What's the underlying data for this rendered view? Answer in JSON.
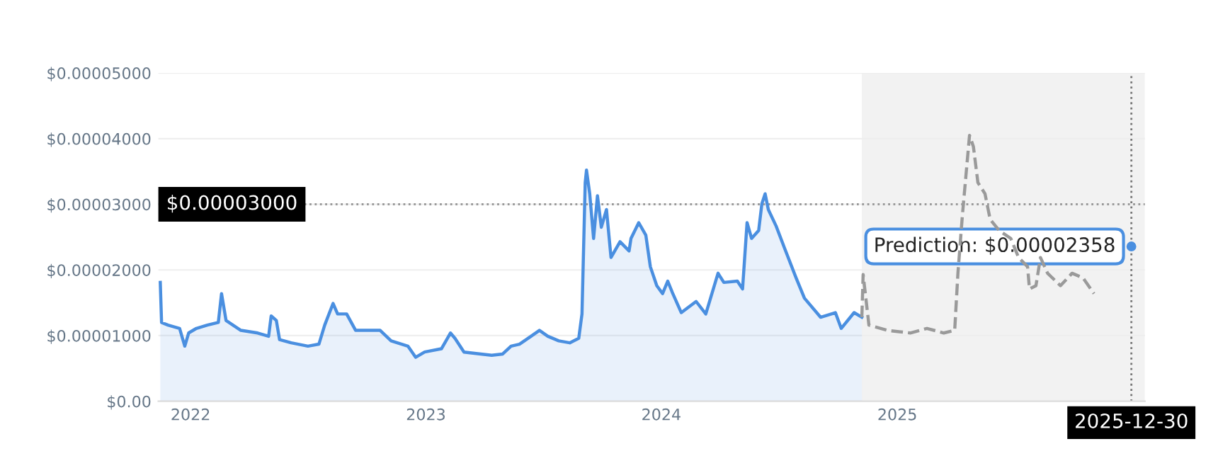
{
  "chart_data": {
    "type": "area",
    "x": [
      "2021-11-15",
      "2021-11-17",
      "2021-11-27",
      "2021-12-15",
      "2021-12-23",
      "2021-12-29",
      "2022-01-10",
      "2022-01-27",
      "2022-02-13",
      "2022-02-18",
      "2022-02-25",
      "2022-03-20",
      "2022-04-15",
      "2022-05-02",
      "2022-05-06",
      "2022-05-14",
      "2022-05-19",
      "2022-06-06",
      "2022-07-02",
      "2022-07-19",
      "2022-07-28",
      "2022-08-10",
      "2022-08-17",
      "2022-08-31",
      "2022-09-14",
      "2022-10-05",
      "2022-10-22",
      "2022-11-08",
      "2022-12-04",
      "2022-12-16",
      "2022-12-30",
      "2023-01-25",
      "2023-02-08",
      "2023-02-15",
      "2023-03-01",
      "2023-03-27",
      "2023-04-13",
      "2023-04-30",
      "2023-05-13",
      "2023-05-26",
      "2023-06-13",
      "2023-06-26",
      "2023-07-09",
      "2023-07-26",
      "2023-08-12",
      "2023-08-26",
      "2023-08-31",
      "2023-09-05",
      "2023-09-07",
      "2023-09-12",
      "2023-09-18",
      "2023-09-24",
      "2023-09-30",
      "2023-10-08",
      "2023-10-15",
      "2023-10-29",
      "2023-11-12",
      "2023-11-15",
      "2023-11-27",
      "2023-12-08",
      "2023-12-15",
      "2023-12-25",
      "2024-01-03",
      "2024-01-11",
      "2024-01-18",
      "2024-02-01",
      "2024-02-24",
      "2024-03-10",
      "2024-03-29",
      "2024-04-07",
      "2024-04-28",
      "2024-05-06",
      "2024-05-13",
      "2024-05-20",
      "2024-05-31",
      "2024-06-05",
      "2024-06-10",
      "2024-06-15",
      "2024-06-27",
      "2024-07-11",
      "2024-07-28",
      "2024-08-10",
      "2024-09-04",
      "2024-09-27",
      "2024-10-06",
      "2024-10-26",
      "2024-11-07"
    ],
    "series": [
      {
        "color": "#4a8fe0",
        "values": [
          1.81e-05,
          1.2e-05,
          1.16e-05,
          1.11e-05,
          8.4e-06,
          1.04e-05,
          1.11e-05,
          1.16e-05,
          1.2e-05,
          1.64e-05,
          1.23e-05,
          1.08e-05,
          1.04e-05,
          9.9e-06,
          1.3e-05,
          1.23e-05,
          9.4e-06,
          8.9e-06,
          8.4e-06,
          8.7e-06,
          1.16e-05,
          1.49e-05,
          1.33e-05,
          1.33e-05,
          1.08e-05,
          1.08e-05,
          1.08e-05,
          9.2e-06,
          8.4e-06,
          6.7e-06,
          7.5e-06,
          8e-06,
          1.04e-05,
          9.6e-06,
          7.5e-06,
          7.2e-06,
          7e-06,
          7.2e-06,
          8.4e-06,
          8.7e-06,
          9.9e-06,
          1.08e-05,
          9.9e-06,
          9.2e-06,
          8.9e-06,
          9.6e-06,
          1.33e-05,
          3.33e-05,
          3.52e-05,
          3.16e-05,
          2.48e-05,
          3.13e-05,
          2.65e-05,
          2.92e-05,
          2.19e-05,
          2.43e-05,
          2.29e-05,
          2.48e-05,
          2.72e-05,
          2.53e-05,
          2.05e-05,
          1.76e-05,
          1.64e-05,
          1.83e-05,
          1.66e-05,
          1.35e-05,
          1.52e-05,
          1.33e-05,
          1.95e-05,
          1.81e-05,
          1.83e-05,
          1.71e-05,
          2.72e-05,
          2.48e-05,
          2.6e-05,
          3.01e-05,
          3.16e-05,
          2.92e-05,
          2.67e-05,
          2.31e-05,
          1.88e-05,
          1.57e-05,
          1.28e-05,
          1.35e-05,
          1.11e-05,
          1.35e-05,
          1.28e-05
        ]
      },
      {
        "type": "line",
        "color": "#9a9a9a",
        "line_style": "dashed",
        "x": [
          "2024-11-07",
          "2024-11-09",
          "2024-11-18",
          "2024-12-17",
          "2025-01-21",
          "2025-02-16",
          "2025-03-14",
          "2025-03-31",
          "2025-04-05",
          "2025-04-12",
          "2025-04-23",
          "2025-04-29",
          "2025-05-06",
          "2025-05-17",
          "2025-05-25",
          "2025-06-08",
          "2025-06-26",
          "2025-07-08",
          "2025-07-22",
          "2025-07-25",
          "2025-08-04",
          "2025-08-11",
          "2025-08-22",
          "2025-09-11",
          "2025-09-29",
          "2025-10-16",
          "2025-11-02"
        ],
        "values": [
          1.28e-05,
          1.93e-05,
          1.16e-05,
          1.08e-05,
          1.04e-05,
          1.11e-05,
          1.04e-05,
          1.08e-05,
          1.95e-05,
          2.84e-05,
          4.05e-05,
          3.88e-05,
          3.33e-05,
          3.16e-05,
          2.77e-05,
          2.6e-05,
          2.48e-05,
          2.19e-05,
          2.05e-05,
          1.71e-05,
          1.76e-05,
          2.19e-05,
          1.95e-05,
          1.76e-05,
          1.95e-05,
          1.88e-05,
          1.64e-05
        ]
      }
    ],
    "xlim": [
      "2021-11-12",
      "2026-01-20"
    ],
    "xticks": [
      {
        "value": "2022-01-01",
        "label": "2022"
      },
      {
        "value": "2023-01-01",
        "label": "2023"
      },
      {
        "value": "2024-01-01",
        "label": "2024"
      },
      {
        "value": "2025-01-01",
        "label": "2025"
      }
    ],
    "ylim": [
      0,
      5e-05
    ],
    "yticks": [
      {
        "value": 0,
        "label": "$0.00"
      },
      {
        "value": 1e-05,
        "label": "$0.00001000"
      },
      {
        "value": 2e-05,
        "label": "$0.00002000"
      },
      {
        "value": 3e-05,
        "label": "$0.00003000"
      },
      {
        "value": 4e-05,
        "label": "$0.00004000"
      },
      {
        "value": 5e-05,
        "label": "$0.00005000"
      }
    ],
    "grid": "y",
    "bands": [
      {
        "axis": "x",
        "from": "2024-11-07",
        "to": "2026-01-20",
        "color": "#f2f2f2"
      }
    ],
    "ref_lines": [
      {
        "axis": "y",
        "value": 3e-05,
        "label": "$0.00003000",
        "line_style": "dotted",
        "color": "#999999"
      },
      {
        "axis": "x",
        "value": "2025-12-30",
        "label": "2025-12-30",
        "line_style": "dotted",
        "color": "#777777"
      }
    ],
    "annotations": [
      {
        "text": "Prediction: $0.00002358",
        "x": "2025-12-30",
        "y": 2.358e-05
      }
    ]
  }
}
